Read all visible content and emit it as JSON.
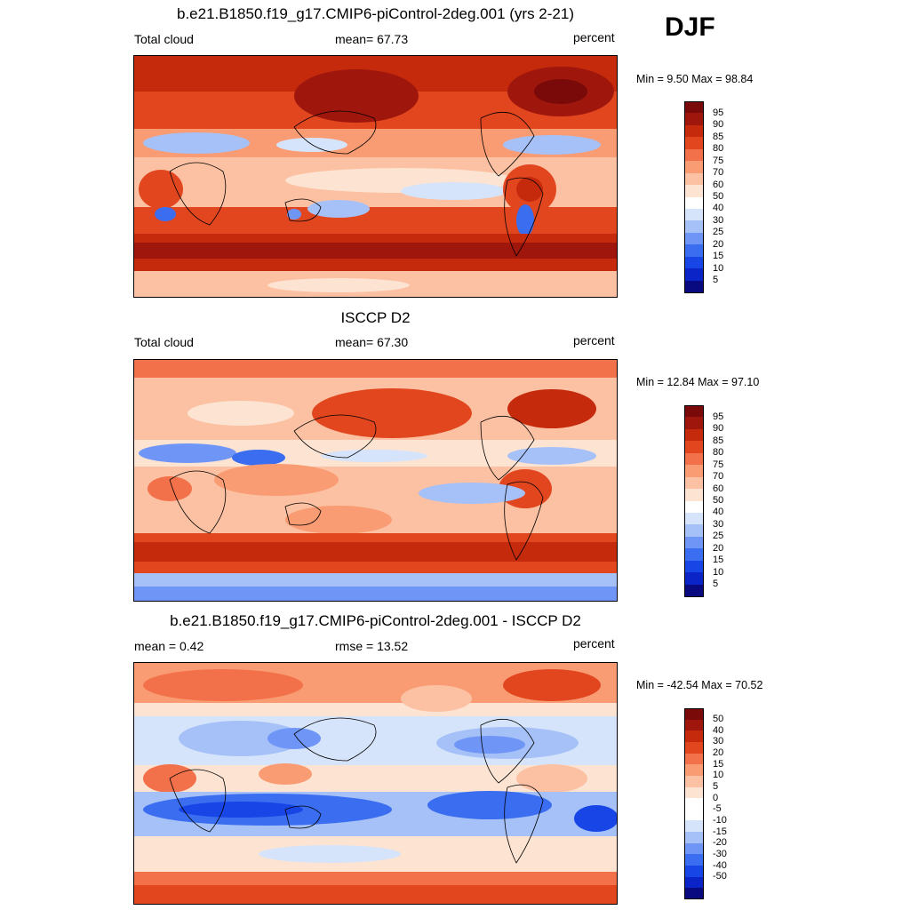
{
  "season": "DJF",
  "colors": {
    "abs": [
      "#0a0a80",
      "#0a24c8",
      "#1745e6",
      "#3a6df0",
      "#6f96f6",
      "#a6c1f7",
      "#d6e4fb",
      "#ffffff",
      "#fde3d2",
      "#fcc1a2",
      "#f99c73",
      "#f3714a",
      "#e2461f",
      "#c52a0d",
      "#9e160c",
      "#7a0a0a"
    ],
    "diff": [
      "#0a0a80",
      "#0a24c8",
      "#1745e6",
      "#3a6df0",
      "#6f96f6",
      "#a6c1f7",
      "#d6e4fb",
      "#ffffff",
      "#ffffff",
      "#fde3d2",
      "#fcc1a2",
      "#f99c73",
      "#f3714a",
      "#e2461f",
      "#c52a0d",
      "#9e160c",
      "#7a0a0a"
    ]
  },
  "panels": [
    {
      "title": "b.e21.B1850.f19_g17.CMIP6-piControl-2deg.001 (yrs 2-21)",
      "left_label": "Total cloud",
      "center_label": "mean=  67.73",
      "units": "percent",
      "minmax": "Min =   9.50 Max =  98.84"
    },
    {
      "title": "ISCCP D2",
      "left_label": "Total cloud",
      "center_label": "mean=  67.30",
      "units": "percent",
      "minmax": "Min =  12.84 Max =  97.10"
    },
    {
      "title": "b.e21.B1850.f19_g17.CMIP6-piControl-2deg.001 - ISCCP D2",
      "left_label": "mean =   0.42",
      "center_label": "rmse =  13.52",
      "units": "percent",
      "minmax": "Min = -42.54 Max =  70.52"
    }
  ],
  "chart_data": [
    {
      "type": "heatmap",
      "title": "b.e21.B1850.f19_g17.CMIP6-piControl-2deg.001 (yrs 2-21)",
      "variable": "Total cloud",
      "units": "percent",
      "mean": 67.73,
      "min": 9.5,
      "max": 98.84,
      "colorbar_levels": [
        "95",
        "90",
        "85",
        "80",
        "75",
        "70",
        "60",
        "50",
        "40",
        "30",
        "25",
        "20",
        "15",
        "10",
        "5"
      ]
    },
    {
      "type": "heatmap",
      "title": "ISCCP D2",
      "variable": "Total cloud",
      "units": "percent",
      "mean": 67.3,
      "min": 12.84,
      "max": 97.1,
      "colorbar_levels": [
        "95",
        "90",
        "85",
        "80",
        "75",
        "70",
        "60",
        "50",
        "40",
        "30",
        "25",
        "20",
        "15",
        "10",
        "5"
      ]
    },
    {
      "type": "heatmap",
      "title": "b.e21.B1850.f19_g17.CMIP6-piControl-2deg.001 - ISCCP D2",
      "units": "percent",
      "mean": 0.42,
      "rmse": 13.52,
      "min": -42.54,
      "max": 70.52,
      "colorbar_levels": [
        "50",
        "40",
        "30",
        "20",
        "15",
        "10",
        "5",
        "0",
        "-5",
        "-10",
        "-15",
        "-20",
        "-30",
        "-40",
        "-50"
      ]
    }
  ]
}
